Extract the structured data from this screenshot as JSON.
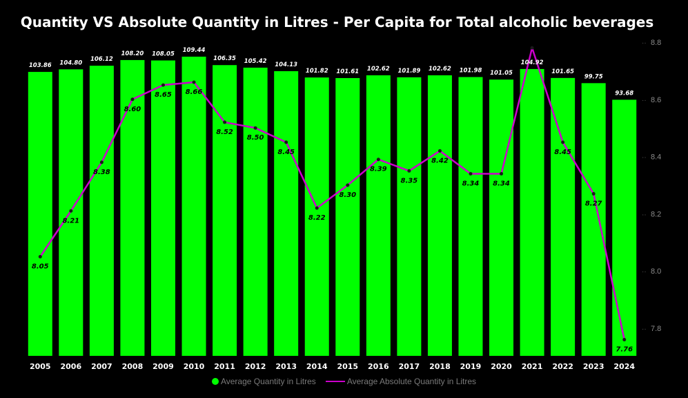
{
  "chart_data": {
    "type": "bar+line",
    "title": "Quantity VS Absolute Quantity in Litres - Per Capita for Total alcoholic beverages",
    "categories": [
      "2005",
      "2006",
      "2007",
      "2008",
      "2009",
      "2010",
      "2011",
      "2012",
      "2013",
      "2014",
      "2015",
      "2016",
      "2017",
      "2018",
      "2019",
      "2020",
      "2021",
      "2022",
      "2023",
      "2024"
    ],
    "series": [
      {
        "name": "Average Quantity in Litres",
        "type": "bar",
        "color": "#00ff00",
        "values": [
          103.86,
          104.8,
          106.12,
          108.2,
          108.05,
          109.44,
          106.35,
          105.42,
          104.13,
          101.82,
          101.61,
          102.62,
          101.89,
          102.62,
          101.98,
          101.05,
          104.92,
          101.65,
          99.75,
          93.68
        ],
        "labels": [
          "103.86",
          "104.80",
          "106.12",
          "108.20",
          "108.05",
          "109.44",
          "106.35",
          "105.42",
          "104.13",
          "101.82",
          "101.61",
          "102.62",
          "101.89",
          "102.62",
          "101.98",
          "101.05",
          "104.92",
          "101.65",
          "99.75",
          "93.68"
        ]
      },
      {
        "name": "Average Absolute Quantity in Litres",
        "type": "line",
        "color": "#cc00cc",
        "values": [
          8.05,
          8.21,
          8.38,
          8.6,
          8.65,
          8.66,
          8.52,
          8.5,
          8.45,
          8.22,
          8.3,
          8.39,
          8.35,
          8.42,
          8.34,
          8.34,
          8.78,
          8.45,
          8.27,
          7.76
        ],
        "labels": [
          "8.05",
          "8.21",
          "8.38",
          "8.60",
          "8.65",
          "8.66",
          "8.52",
          "8.50",
          "8.45",
          "8.22",
          "8.30",
          "8.39",
          "8.35",
          "8.42",
          "8.34",
          "8.34",
          "",
          "8.45",
          "8.27",
          "7.76"
        ]
      }
    ],
    "y2_ticks": [
      "7.8",
      "8.0",
      "8.2",
      "8.4",
      "8.6",
      "8.8"
    ],
    "y2_lim": [
      7.7,
      8.8
    ],
    "y_lim": [
      0,
      114
    ],
    "legend_position": "bottom-center"
  }
}
